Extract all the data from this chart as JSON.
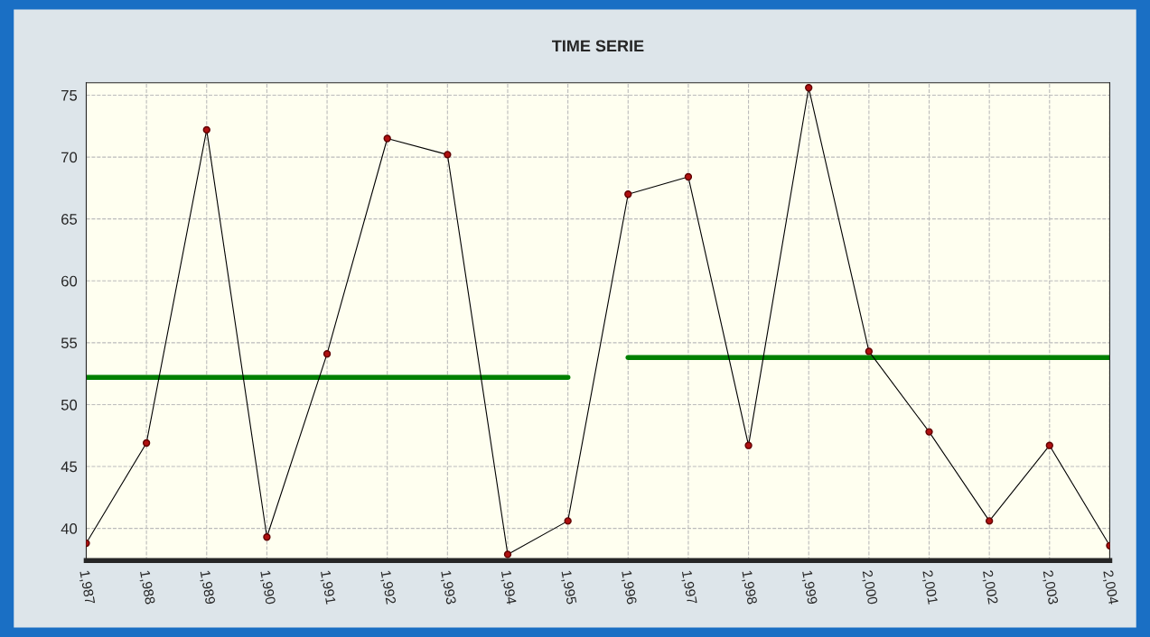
{
  "chart_data": {
    "type": "line",
    "title": "TIME SERIE",
    "x": [
      1987,
      1988,
      1989,
      1990,
      1991,
      1992,
      1993,
      1994,
      1995,
      1996,
      1997,
      1998,
      1999,
      2000,
      2001,
      2002,
      2003,
      2004
    ],
    "series": [
      {
        "color": "#000000",
        "values": [
          38.8,
          46.9,
          72.2,
          39.3,
          54.1,
          71.5,
          70.2,
          37.9,
          40.6,
          67.0,
          68.4,
          46.7,
          75.6,
          54.3,
          47.8,
          40.6,
          46.7,
          38.6
        ],
        "marker": "circle"
      },
      {
        "type": "line",
        "color": "#008000",
        "x": [
          1987,
          1995
        ],
        "values": [
          52.2,
          52.2
        ],
        "marker": "none"
      },
      {
        "type": "line",
        "color": "#008000",
        "x": [
          1996,
          2004
        ],
        "values": [
          53.8,
          53.8
        ],
        "marker": "none"
      }
    ],
    "xlim": [
      1987,
      2004
    ],
    "xticks": [
      {
        "value": 1987,
        "label": "1,987"
      },
      {
        "value": 1988,
        "label": "1,988"
      },
      {
        "value": 1989,
        "label": "1,989"
      },
      {
        "value": 1990,
        "label": "1,990"
      },
      {
        "value": 1991,
        "label": "1,991"
      },
      {
        "value": 1992,
        "label": "1,992"
      },
      {
        "value": 1993,
        "label": "1,993"
      },
      {
        "value": 1994,
        "label": "1,994"
      },
      {
        "value": 1995,
        "label": "1,995"
      },
      {
        "value": 1996,
        "label": "1,996"
      },
      {
        "value": 1997,
        "label": "1,997"
      },
      {
        "value": 1998,
        "label": "1,998"
      },
      {
        "value": 1999,
        "label": "1,999"
      },
      {
        "value": 2000,
        "label": "2,000"
      },
      {
        "value": 2001,
        "label": "2,001"
      },
      {
        "value": 2002,
        "label": "2,002"
      },
      {
        "value": 2003,
        "label": "2,003"
      },
      {
        "value": 2004,
        "label": "2,004"
      }
    ],
    "ylim": [
      37.4,
      76.0
    ],
    "yticks": [
      40,
      45,
      50,
      55,
      60,
      65,
      70,
      75
    ],
    "grid": true,
    "line_style": "solid"
  }
}
